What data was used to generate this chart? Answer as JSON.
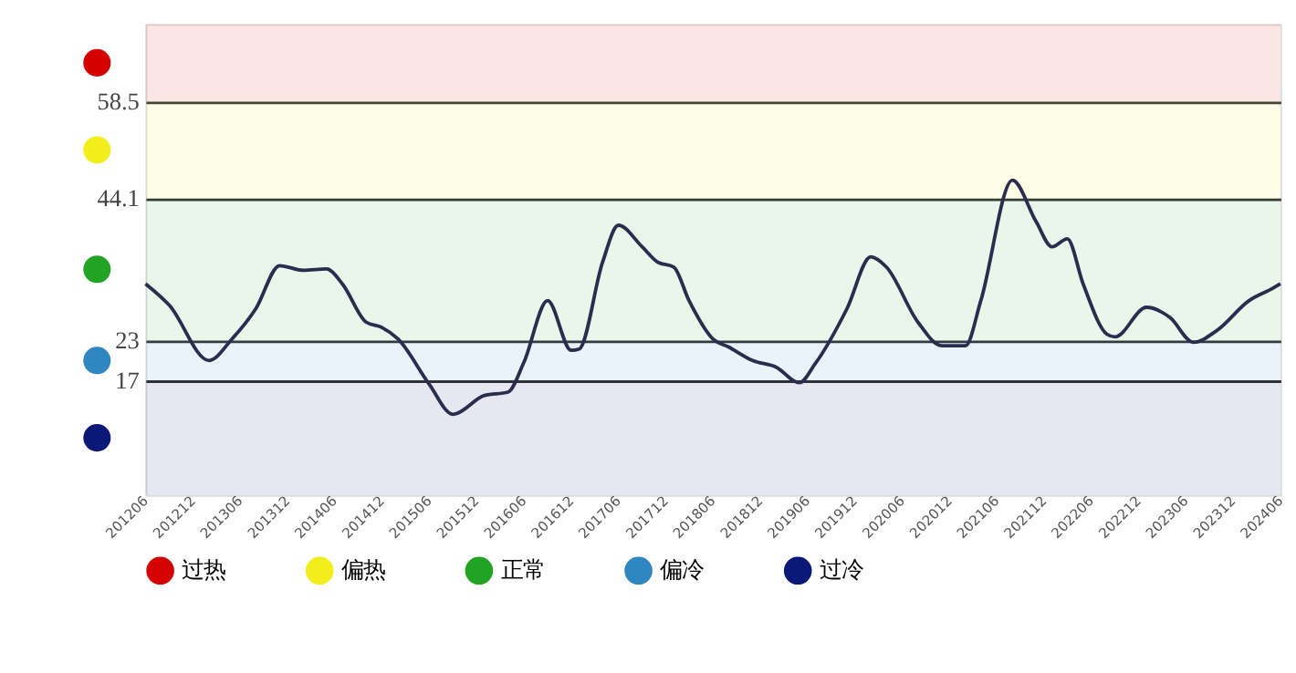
{
  "chart_data": {
    "type": "line",
    "x": [
      "2012-06",
      "2012-09",
      "2013-02",
      "2013-05",
      "2013-08",
      "2013-11",
      "2014-02",
      "2014-05",
      "2014-07",
      "2014-10",
      "2014-12",
      "2015-02",
      "2015-06",
      "2015-09",
      "2016-01",
      "2016-04",
      "2016-06",
      "2016-09",
      "2016-12",
      "2017-01",
      "2017-04",
      "2017-06",
      "2017-09",
      "2017-11",
      "2018-01",
      "2018-03",
      "2018-06",
      "2018-08",
      "2018-11",
      "2019-02",
      "2019-05",
      "2019-07",
      "2019-11",
      "2020-02",
      "2020-04",
      "2020-08",
      "2020-11",
      "2021-02",
      "2021-04",
      "2021-08",
      "2021-11",
      "2022-01",
      "2022-03",
      "2022-05",
      "2022-08",
      "2022-09",
      "2023-01",
      "2023-04",
      "2023-07",
      "2023-10",
      "2024-02",
      "2024-05",
      "2024-06"
    ],
    "series": [
      {
        "color": "#2a2d4e",
        "values": [
          31.4,
          28.2,
          20.0,
          23.2,
          27.7,
          34.1,
          33.4,
          33.6,
          31.4,
          25.7,
          24.9,
          23.2,
          16.5,
          12.0,
          14.8,
          15.3,
          19.7,
          28.9,
          21.5,
          21.7,
          34.6,
          40.1,
          36.9,
          34.6,
          33.9,
          28.9,
          23.2,
          22.0,
          20.0,
          19.0,
          16.7,
          19.5,
          27.7,
          35.4,
          33.9,
          25.7,
          22.2,
          22.2,
          28.9,
          46.8,
          40.6,
          36.9,
          38.1,
          31.4,
          23.9,
          23.5,
          27.9,
          26.4,
          22.7,
          24.5,
          28.9,
          30.7,
          31.4
        ]
      }
    ],
    "xlim": [
      "2012-06",
      "2024-06"
    ],
    "xticks": [
      {
        "value": "2012-06",
        "label": "201206"
      },
      {
        "value": "2012-12",
        "label": "201212"
      },
      {
        "value": "2013-06",
        "label": "201306"
      },
      {
        "value": "2013-12",
        "label": "201312"
      },
      {
        "value": "2014-06",
        "label": "201406"
      },
      {
        "value": "2014-12",
        "label": "201412"
      },
      {
        "value": "2015-06",
        "label": "201506"
      },
      {
        "value": "2015-12",
        "label": "201512"
      },
      {
        "value": "2016-06",
        "label": "201606"
      },
      {
        "value": "2016-12",
        "label": "201612"
      },
      {
        "value": "2017-06",
        "label": "201706"
      },
      {
        "value": "2017-12",
        "label": "201712"
      },
      {
        "value": "2018-06",
        "label": "201806"
      },
      {
        "value": "2018-12",
        "label": "201812"
      },
      {
        "value": "2019-06",
        "label": "201906"
      },
      {
        "value": "2019-12",
        "label": "201912"
      },
      {
        "value": "2020-06",
        "label": "202006"
      },
      {
        "value": "2020-12",
        "label": "202012"
      },
      {
        "value": "2021-06",
        "label": "202106"
      },
      {
        "value": "2021-12",
        "label": "202112"
      },
      {
        "value": "2022-06",
        "label": "202206"
      },
      {
        "value": "2022-12",
        "label": "202212"
      },
      {
        "value": "2023-06",
        "label": "202306"
      },
      {
        "value": "2023-12",
        "label": "202312"
      },
      {
        "value": "2024-06",
        "label": "202406"
      }
    ],
    "ylim": [
      0,
      70
    ],
    "yticks": [
      17,
      23,
      44.1,
      58.5
    ],
    "grid": "y",
    "legend": "bottom",
    "marker": "none",
    "line_style": "solid",
    "bands": [
      {
        "axis": "y",
        "from": 58.5,
        "to": 70,
        "label": "过热",
        "color": "#d40000"
      },
      {
        "axis": "y",
        "from": 44.1,
        "to": 58.5,
        "label": "偏热",
        "color": "#f2ee1c"
      },
      {
        "axis": "y",
        "from": 23,
        "to": 44.1,
        "label": "正常",
        "color": "#23a323"
      },
      {
        "axis": "y",
        "from": 17,
        "to": 23,
        "label": "偏冷",
        "color": "#2f86c0"
      },
      {
        "axis": "y",
        "from": 0,
        "to": 17,
        "label": "过冷",
        "color": "#0b1877"
      }
    ]
  }
}
